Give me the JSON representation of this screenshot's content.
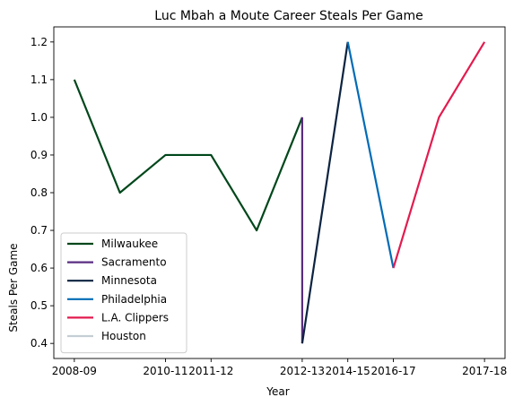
{
  "chart_data": {
    "type": "line",
    "title": "Luc Mbah a Moute Career Steals Per Game",
    "xlabel": "Year",
    "ylabel": "Steals Per Game",
    "xlim": [
      -0.45,
      9.45
    ],
    "ylim": [
      0.36,
      1.24
    ],
    "x_tick_positions": [
      0,
      2,
      3,
      5,
      6,
      7,
      9
    ],
    "x_tick_labels": [
      "2008-09",
      "2010-11",
      "2011-12",
      "2012-13",
      "2014-15",
      "2016-17",
      "2017-18"
    ],
    "y_ticks": [
      0.4,
      0.5,
      0.6,
      0.7,
      0.8,
      0.9,
      1.0,
      1.1,
      1.2
    ],
    "y_tick_labels": [
      "0.4",
      "0.5",
      "0.6",
      "0.7",
      "0.8",
      "0.9",
      "1.0",
      "1.1",
      "1.2"
    ],
    "grid": false,
    "legend_position": "bottom-left",
    "series": [
      {
        "name": "Milwaukee",
        "color": "#00471b",
        "x": [
          0,
          1,
          2,
          3,
          4,
          5
        ],
        "y": [
          1.1,
          0.8,
          0.9,
          0.9,
          0.7,
          1.0
        ]
      },
      {
        "name": "Sacramento",
        "color": "#5a2d81",
        "x": [
          5,
          5
        ],
        "y": [
          1.0,
          0.4
        ]
      },
      {
        "name": "Minnesota",
        "color": "#0c2340",
        "x": [
          5,
          6
        ],
        "y": [
          0.4,
          1.2
        ]
      },
      {
        "name": "Philadelphia",
        "color": "#006bb6",
        "x": [
          6,
          7
        ],
        "y": [
          1.2,
          0.6
        ]
      },
      {
        "name": "L.A. Clippers",
        "color": "#e31b4f",
        "x": [
          7,
          8,
          9
        ],
        "y": [
          0.6,
          1.0,
          1.2
        ]
      },
      {
        "name": "Houston",
        "color": "#c4ced4",
        "x": [],
        "y": []
      }
    ]
  }
}
